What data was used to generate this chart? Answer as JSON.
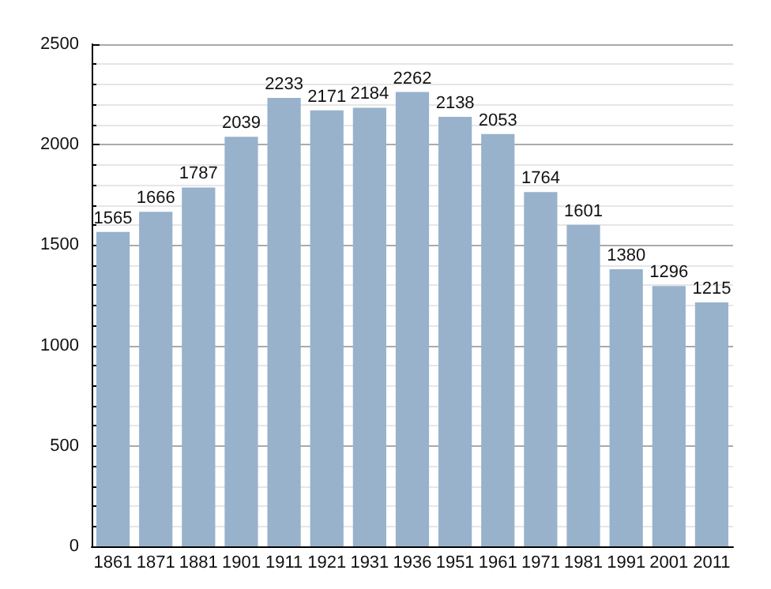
{
  "chart_data": {
    "type": "bar",
    "categories": [
      "1861",
      "1871",
      "1881",
      "1901",
      "1911",
      "1921",
      "1931",
      "1936",
      "1951",
      "1961",
      "1971",
      "1981",
      "1991",
      "2001",
      "2011"
    ],
    "values": [
      1565,
      1666,
      1787,
      2039,
      2233,
      2171,
      2184,
      2262,
      2138,
      2053,
      1764,
      1601,
      1380,
      1296,
      1215
    ],
    "color": "#98b2cc",
    "ylim": [
      0,
      2500
    ],
    "yticks": [
      0,
      500,
      1000,
      1500,
      2000,
      2500
    ],
    "grid": true,
    "data_labels": true
  }
}
